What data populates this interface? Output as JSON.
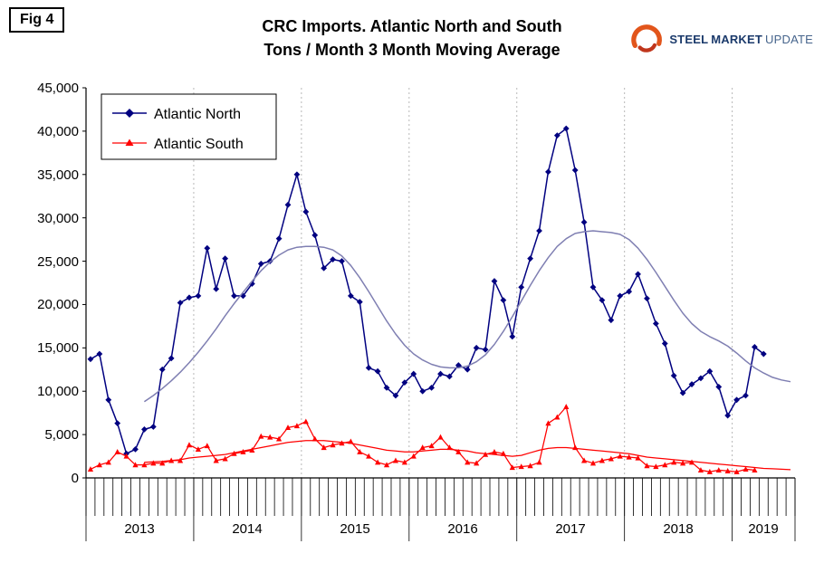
{
  "header": {
    "fig_label": "Fig 4",
    "logo": {
      "word1": "STEEL",
      "word2": "MARKET",
      "word3": "UPDATE"
    }
  },
  "chart_data": {
    "type": "line",
    "title": "CRC Imports. Atlantic North and South",
    "subtitle": "Tons / Month 3 Month Moving Average",
    "ylim": [
      0,
      45000
    ],
    "y_tick_step": 5000,
    "y_tick_labels": [
      "0",
      "5,000",
      "10,000",
      "15,000",
      "20,000",
      "25,000",
      "30,000",
      "35,000",
      "40,000",
      "45,000"
    ],
    "x_start": "2013-01",
    "x_years": [
      {
        "label": "2013",
        "months": 12
      },
      {
        "label": "2014",
        "months": 12
      },
      {
        "label": "2015",
        "months": 12
      },
      {
        "label": "2016",
        "months": 12
      },
      {
        "label": "2017",
        "months": 12
      },
      {
        "label": "2018",
        "months": 12
      },
      {
        "label": "2019",
        "months": 7
      }
    ],
    "grid": "vertical-dashed-at-year-boundaries",
    "legend_position": "top-left-inside",
    "colors": {
      "north": "#000080",
      "south": "#ff0000",
      "north_trend": "#7f7fb2",
      "gridline": "#b8b8b8"
    },
    "series": [
      {
        "name": "Atlantic North",
        "color": "#000080",
        "marker": "diamond",
        "line_width": 1.5,
        "start_index": 0,
        "in_legend": true,
        "values": [
          13700,
          14300,
          9000,
          6300,
          2800,
          3300,
          5600,
          5900,
          12500,
          13800,
          20200,
          20800,
          21000,
          26500,
          21800,
          25300,
          21000,
          21000,
          22400,
          24700,
          25000,
          27600,
          31500,
          35000,
          30700,
          28000,
          24200,
          25200,
          25000,
          21000,
          20300,
          12700,
          12300,
          10400,
          9500,
          11000,
          12000,
          10000,
          10400,
          12000,
          11700,
          13000,
          12500,
          15000,
          14800,
          22700,
          20500,
          16300,
          22000,
          25300,
          28500,
          35300,
          39500,
          40300,
          35500,
          29500,
          22000,
          20500,
          18200,
          21000,
          21500,
          23500,
          20700,
          17800,
          15500,
          11800,
          9800,
          10800,
          11500,
          12300,
          10500,
          7200,
          9000,
          9500,
          15100,
          14300
        ]
      },
      {
        "name": "Atlantic South",
        "color": "#ff0000",
        "marker": "triangle",
        "line_width": 1.25,
        "start_index": 0,
        "in_legend": true,
        "values": [
          1000,
          1500,
          1800,
          3000,
          2500,
          1500,
          1500,
          1700,
          1700,
          2000,
          2000,
          3800,
          3300,
          3700,
          2000,
          2200,
          2800,
          3000,
          3200,
          4800,
          4700,
          4500,
          5800,
          6000,
          6500,
          4500,
          3500,
          3800,
          4000,
          4200,
          3000,
          2500,
          1800,
          1500,
          2000,
          1800,
          2500,
          3500,
          3700,
          4700,
          3500,
          3000,
          1800,
          1700,
          2700,
          3000,
          2800,
          1200,
          1300,
          1400,
          1800,
          6300,
          7000,
          8200,
          3500,
          2000,
          1700,
          2000,
          2200,
          2500,
          2400,
          2300,
          1400,
          1300,
          1500,
          1800,
          1700,
          1800,
          900,
          700,
          900,
          800,
          700,
          1000,
          900
        ]
      },
      {
        "name": "Atlantic North smoothed trend",
        "color": "#7f7fb2",
        "marker": "none",
        "line_width": 1.5,
        "start_index": 6,
        "in_legend": false,
        "values": [
          8800,
          9500,
          10300,
          11200,
          12200,
          13300,
          14500,
          15800,
          17200,
          18700,
          20100,
          21400,
          22700,
          23900,
          24900,
          25700,
          26300,
          26600,
          26700,
          26700,
          26600,
          26300,
          25600,
          24500,
          23100,
          21500,
          19800,
          18100,
          16600,
          15300,
          14300,
          13600,
          13100,
          12800,
          12700,
          12700,
          12900,
          13400,
          14200,
          15400,
          16900,
          18600,
          20400,
          22200,
          23900,
          25400,
          26700,
          27600,
          28200,
          28400,
          28500,
          28400,
          28300,
          28100,
          27500,
          26500,
          25200,
          23700,
          22100,
          20500,
          19000,
          17800,
          16900,
          16300,
          15800,
          15200,
          14400,
          13500,
          12700,
          12100,
          11600,
          11300,
          11100
        ]
      },
      {
        "name": "Atlantic South smoothed trend",
        "color": "#ff0000",
        "marker": "none",
        "line_width": 1.25,
        "start_index": 6,
        "in_legend": false,
        "values": [
          1800,
          1850,
          1900,
          2000,
          2100,
          2300,
          2400,
          2500,
          2600,
          2700,
          2900,
          3100,
          3300,
          3500,
          3700,
          3900,
          4100,
          4200,
          4300,
          4300,
          4300,
          4200,
          4100,
          4000,
          3800,
          3600,
          3400,
          3200,
          3100,
          3000,
          3000,
          3100,
          3200,
          3300,
          3300,
          3200,
          3100,
          2900,
          2800,
          2700,
          2600,
          2500,
          2600,
          2900,
          3200,
          3400,
          3500,
          3500,
          3400,
          3300,
          3200,
          3100,
          3000,
          2900,
          2800,
          2600,
          2400,
          2300,
          2200,
          2100,
          2000,
          1900,
          1800,
          1700,
          1600,
          1500,
          1400,
          1300,
          1200,
          1100,
          1050,
          1000,
          950
        ]
      }
    ]
  }
}
